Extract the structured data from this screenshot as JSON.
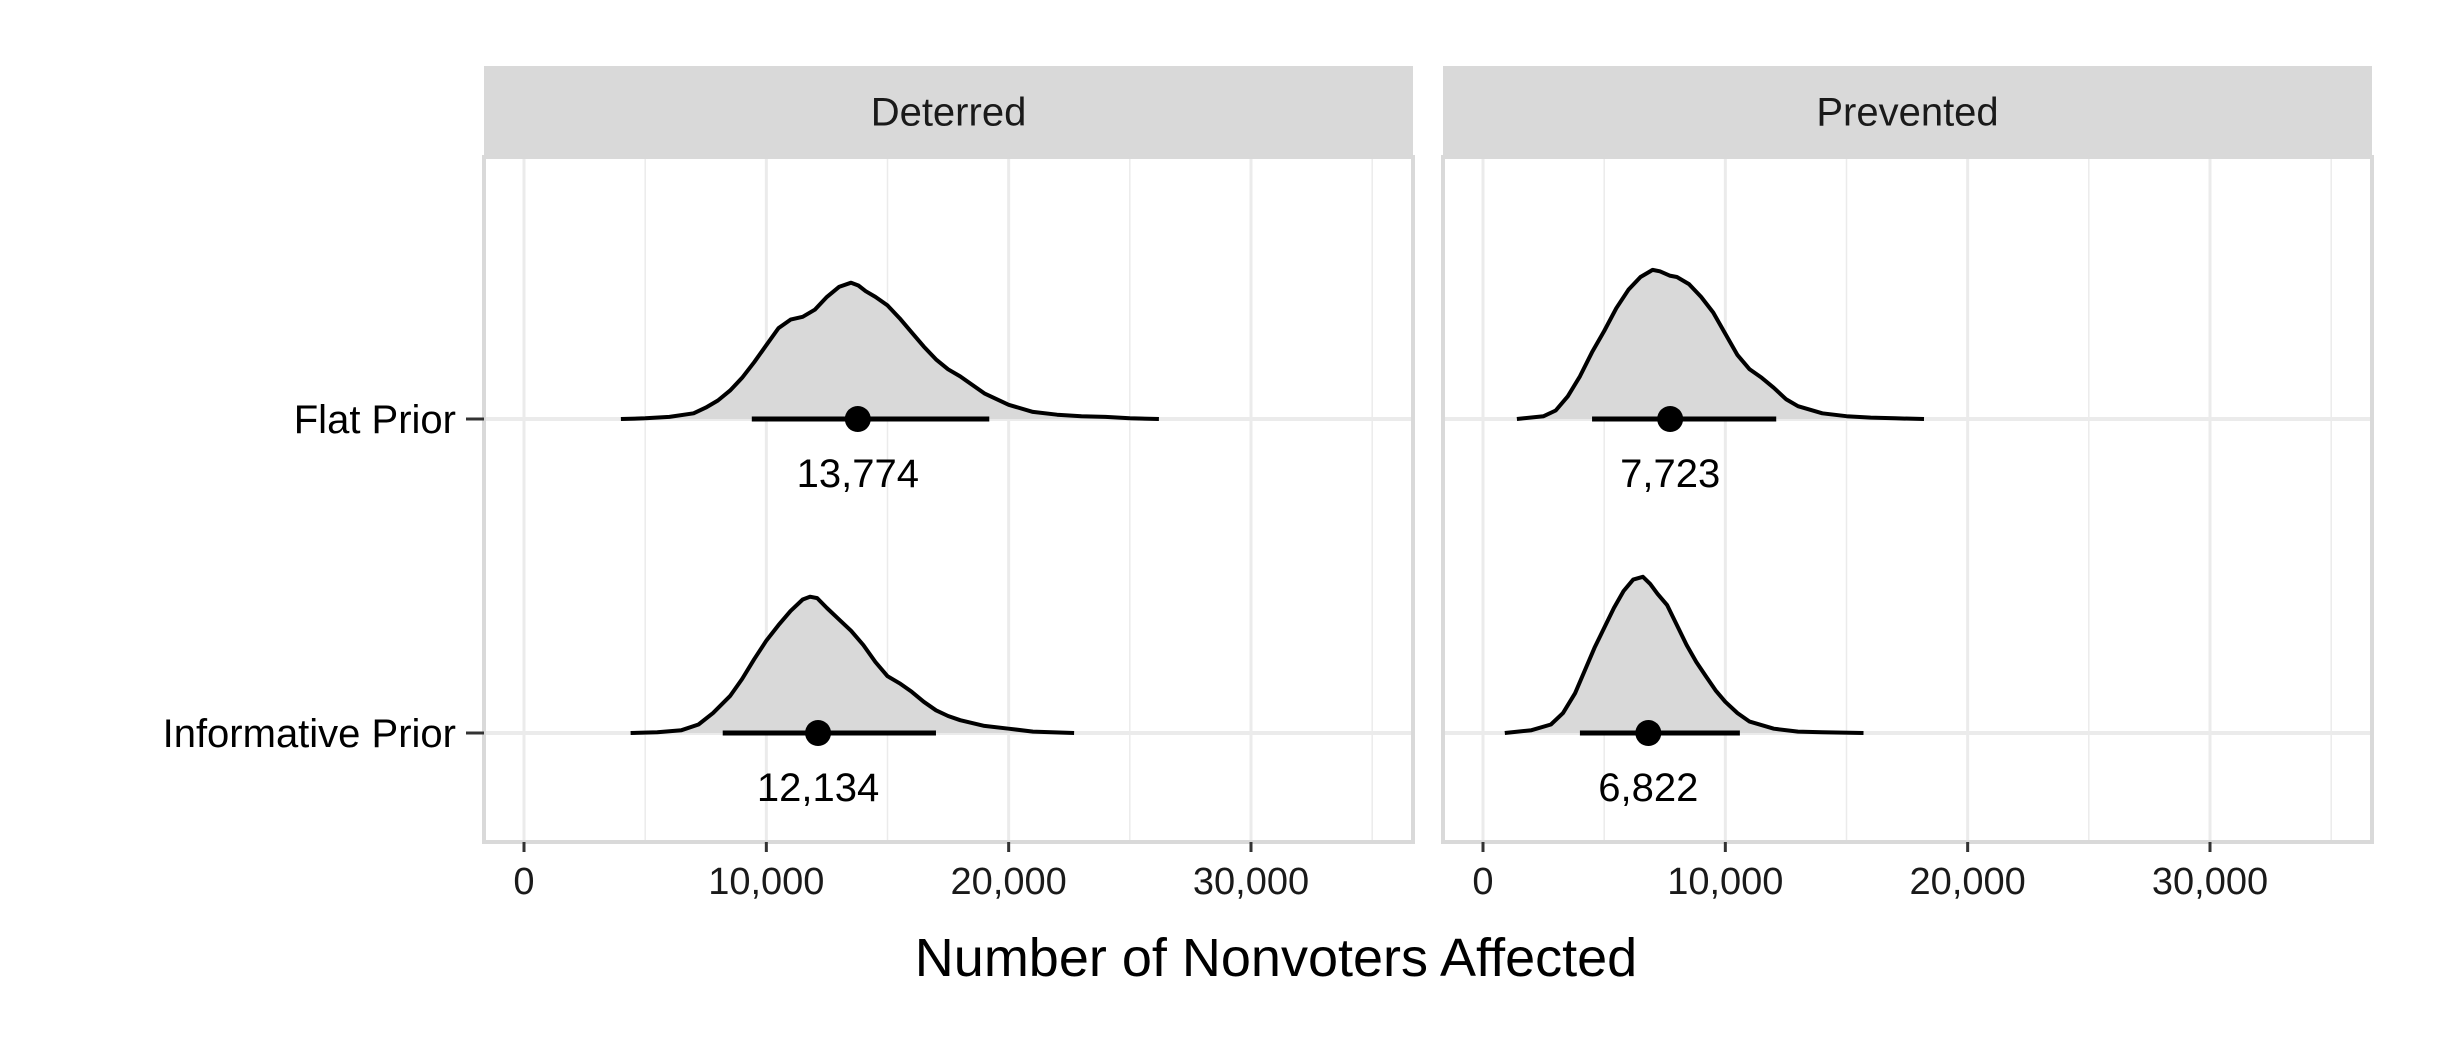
{
  "chart_data": {
    "type": "ridgeline",
    "xlabel": "Number of Nonvoters Affected",
    "xlim": [
      -1800,
      36000
    ],
    "x_ticks": [
      0,
      10000,
      20000,
      30000
    ],
    "x_tick_labels": [
      "0",
      "10,000",
      "20,000",
      "30,000"
    ],
    "x_minor_ticks": [
      5000,
      15000,
      25000,
      35000
    ],
    "rows": [
      "Flat Prior",
      "Informative Prior"
    ],
    "grid": true,
    "colors": {
      "fill": "#d9d9d9",
      "line": "#000000",
      "strip": "#d9d9d9",
      "grid": "#ebebeb",
      "border": "#d9d9d9"
    },
    "panels": [
      {
        "label": "Deterred",
        "series": [
          {
            "row": "Flat Prior",
            "point": 13774,
            "point_label": "13,774",
            "interval": [
              9400,
              19200
            ],
            "density_x": [
              4000,
              5000,
              6000,
              7000,
              7500,
              8000,
              8500,
              9000,
              9500,
              10000,
              10500,
              11000,
              11500,
              12000,
              12500,
              13000,
              13500,
              13800,
              14100,
              14500,
              15000,
              15500,
              16000,
              16500,
              17000,
              17500,
              18000,
              19000,
              20000,
              21000,
              22000,
              23000,
              24000,
              25000,
              26200
            ],
            "density_y": [
              0.0,
              0.005,
              0.015,
              0.04,
              0.08,
              0.13,
              0.2,
              0.29,
              0.4,
              0.52,
              0.64,
              0.7,
              0.72,
              0.77,
              0.86,
              0.93,
              0.96,
              0.94,
              0.9,
              0.86,
              0.8,
              0.71,
              0.61,
              0.51,
              0.42,
              0.35,
              0.3,
              0.18,
              0.1,
              0.05,
              0.03,
              0.02,
              0.015,
              0.005,
              0.0
            ]
          },
          {
            "row": "Informative Prior",
            "point": 12134,
            "point_label": "12,134",
            "interval": [
              8200,
              17000
            ],
            "density_x": [
              4400,
              5500,
              6500,
              7200,
              7800,
              8500,
              9000,
              9500,
              10000,
              10500,
              11000,
              11500,
              11800,
              12100,
              12500,
              13000,
              13500,
              14000,
              14500,
              15000,
              15500,
              16000,
              16500,
              17000,
              17500,
              18000,
              19000,
              20000,
              21000,
              22700
            ],
            "density_y": [
              0.0,
              0.005,
              0.02,
              0.06,
              0.14,
              0.26,
              0.38,
              0.52,
              0.65,
              0.76,
              0.86,
              0.94,
              0.96,
              0.95,
              0.88,
              0.8,
              0.72,
              0.62,
              0.5,
              0.4,
              0.35,
              0.29,
              0.22,
              0.16,
              0.12,
              0.09,
              0.05,
              0.03,
              0.01,
              0.0
            ]
          }
        ]
      },
      {
        "label": "Prevented",
        "series": [
          {
            "row": "Flat Prior",
            "point": 7723,
            "point_label": "7,723",
            "interval": [
              4500,
              12100
            ],
            "density_x": [
              1400,
              2500,
              3000,
              3500,
              4000,
              4500,
              5000,
              5500,
              6000,
              6500,
              7000,
              7300,
              7700,
              8000,
              8500,
              9000,
              9500,
              10000,
              10500,
              11000,
              11500,
              12000,
              12500,
              13000,
              14000,
              15000,
              16000,
              17000,
              18200
            ],
            "density_y": [
              0.0,
              0.02,
              0.06,
              0.16,
              0.3,
              0.47,
              0.62,
              0.78,
              0.91,
              1.0,
              1.05,
              1.04,
              1.01,
              1.0,
              0.95,
              0.86,
              0.75,
              0.6,
              0.45,
              0.35,
              0.29,
              0.22,
              0.14,
              0.09,
              0.04,
              0.02,
              0.01,
              0.005,
              0.0
            ]
          },
          {
            "row": "Informative Prior",
            "point": 6822,
            "point_label": "6,822",
            "interval": [
              4000,
              10600
            ],
            "density_x": [
              900,
              2000,
              2800,
              3300,
              3800,
              4200,
              4600,
              5000,
              5400,
              5800,
              6200,
              6600,
              6900,
              7200,
              7600,
              8000,
              8400,
              8800,
              9200,
              9600,
              10000,
              10500,
              11000,
              12000,
              13000,
              14000,
              15700
            ],
            "density_y": [
              0.0,
              0.02,
              0.06,
              0.14,
              0.28,
              0.44,
              0.6,
              0.74,
              0.88,
              1.0,
              1.08,
              1.1,
              1.05,
              0.98,
              0.9,
              0.76,
              0.62,
              0.5,
              0.4,
              0.3,
              0.22,
              0.14,
              0.08,
              0.03,
              0.01,
              0.005,
              0.0
            ]
          }
        ]
      }
    ]
  }
}
